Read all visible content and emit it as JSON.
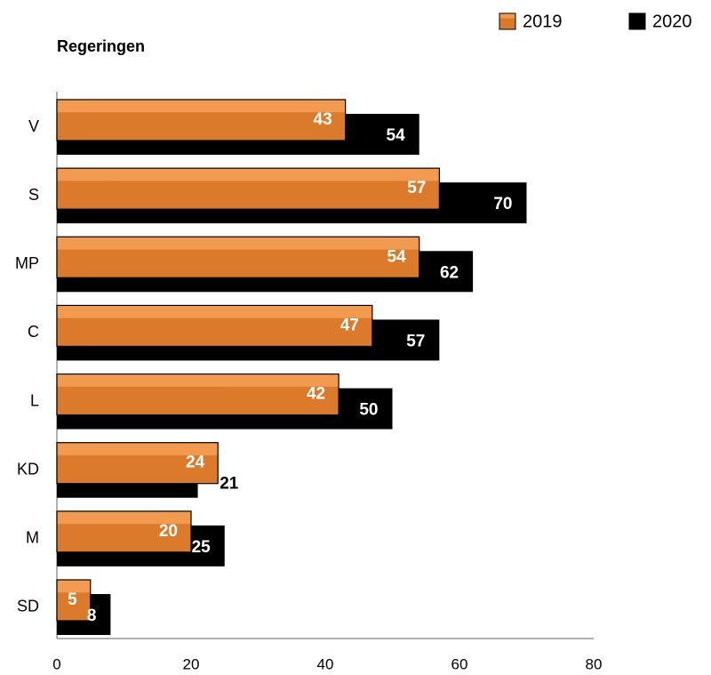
{
  "chart_data": {
    "type": "bar",
    "orientation": "horizontal",
    "title": "Regeringen",
    "categories": [
      "V",
      "S",
      "MP",
      "C",
      "L",
      "KD",
      "M",
      "SD"
    ],
    "series": [
      {
        "name": "2019",
        "color": "#dc7a2c",
        "values": [
          43,
          57,
          54,
          47,
          42,
          24,
          20,
          5
        ]
      },
      {
        "name": "2020",
        "color": "#000000",
        "values": [
          54,
          70,
          62,
          57,
          50,
          21,
          25,
          8
        ]
      }
    ],
    "xlim": [
      0,
      80
    ],
    "xticks": [
      0,
      20,
      40,
      60,
      80
    ],
    "grid": false,
    "legend": "top-right"
  }
}
